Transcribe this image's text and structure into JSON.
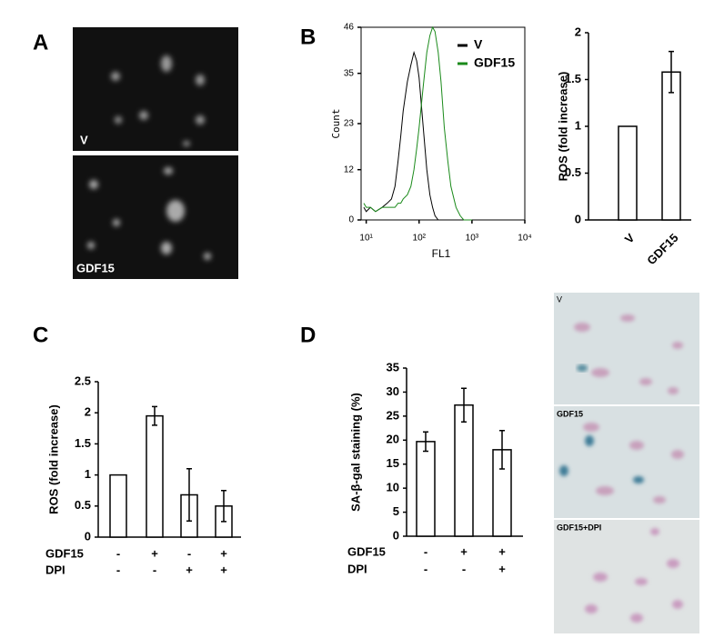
{
  "panel_labels": [
    "A",
    "B",
    "C",
    "D"
  ],
  "micrographs_A": [
    "V",
    "GDF15"
  ],
  "micrographs_D": [
    "V",
    "GDF15",
    "GDF15+DPI"
  ],
  "chart_data": [
    {
      "type": "line",
      "x_label": "FL1",
      "y_label": "Count",
      "xscale": "log",
      "xlim": [
        8,
        10000
      ],
      "xticks": [
        {
          "value": 10,
          "label": "10¹"
        },
        {
          "value": 100,
          "label": "10²"
        },
        {
          "value": 1000,
          "label": "10³"
        },
        {
          "value": 10000,
          "label": "10⁴"
        }
      ],
      "ylim": [
        0,
        46
      ],
      "yticks": [
        0,
        12,
        23,
        35,
        46
      ],
      "x": [
        9,
        10,
        12,
        15,
        20,
        25,
        30,
        35,
        40,
        45,
        50,
        60,
        70,
        80,
        90,
        100,
        120,
        140,
        160,
        180,
        200,
        230,
        260,
        300,
        350,
        400,
        500,
        600,
        700,
        800,
        1000
      ],
      "series": [
        {
          "name": "V",
          "color": "#000000",
          "values": [
            3,
            2,
            3,
            2,
            3,
            4,
            5,
            8,
            14,
            20,
            26,
            33,
            37,
            40,
            38,
            34,
            22,
            12,
            6,
            3,
            1,
            0,
            0,
            0,
            0,
            0,
            0,
            0,
            0,
            0,
            0
          ]
        },
        {
          "name": "GDF15",
          "color": "#1a8a1a",
          "values": [
            4,
            3,
            3,
            2,
            3,
            3,
            3,
            3,
            4,
            4,
            5,
            6,
            8,
            12,
            17,
            22,
            32,
            40,
            44,
            46,
            45,
            40,
            33,
            22,
            14,
            8,
            3,
            1,
            0,
            0,
            0
          ]
        }
      ]
    },
    {
      "type": "bar",
      "y_label": "ROS (fold increase)",
      "categories": [
        "V",
        "GDF15"
      ],
      "values": [
        1,
        1.58
      ],
      "errors": [
        0,
        0.22
      ],
      "ylim": [
        0,
        2
      ],
      "yticks": [
        0,
        0.5,
        1,
        1.5,
        2
      ]
    },
    {
      "type": "bar",
      "y_label": "ROS (fold increase)",
      "values": [
        1,
        1.95,
        0.68,
        0.5
      ],
      "errors": [
        0,
        0.15,
        0.42,
        0.25
      ],
      "ylim": [
        0,
        2.5
      ],
      "yticks": [
        0,
        0.5,
        1,
        1.5,
        2,
        2.5
      ],
      "treatments": [
        {
          "name": "GDF15",
          "signs": [
            "-",
            "+",
            "-",
            "+"
          ]
        },
        {
          "name": "DPI",
          "signs": [
            "-",
            "-",
            "+",
            "+"
          ]
        }
      ]
    },
    {
      "type": "bar",
      "y_label": "SA-β-gal staining (%)",
      "values": [
        19.7,
        27.3,
        18
      ],
      "errors": [
        2,
        3.5,
        4
      ],
      "ylim": [
        0,
        35
      ],
      "yticks": [
        0,
        5,
        10,
        15,
        20,
        25,
        30,
        35
      ],
      "treatments": [
        {
          "name": "GDF15",
          "signs": [
            "-",
            "+",
            "+"
          ]
        },
        {
          "name": "DPI",
          "signs": [
            "-",
            "-",
            "+"
          ]
        }
      ]
    }
  ]
}
